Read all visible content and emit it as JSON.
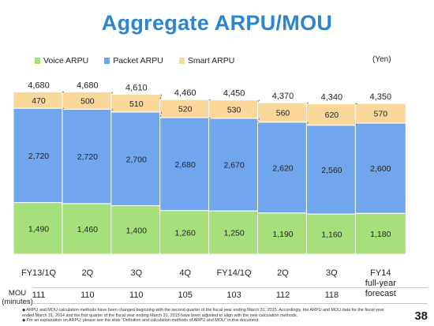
{
  "title": "Aggregate ARPU/MOU",
  "unit": "(Yen)",
  "chart_data": {
    "type": "bar",
    "stacked": true,
    "categories": [
      "FY13/1Q",
      "2Q",
      "3Q",
      "4Q",
      "FY14/1Q",
      "2Q",
      "3Q",
      "FY14 full-year forecast"
    ],
    "category_lines": [
      [
        "FY13/1Q"
      ],
      [
        "2Q"
      ],
      [
        "3Q"
      ],
      [
        "4Q"
      ],
      [
        "FY14/1Q"
      ],
      [
        "2Q"
      ],
      [
        "3Q"
      ],
      [
        "FY14",
        "full-year",
        "forecast"
      ]
    ],
    "series": [
      {
        "name": "Voice ARPU",
        "color": "#a6e07a",
        "values": [
          1490,
          1460,
          1400,
          1260,
          1250,
          1190,
          1160,
          1180
        ],
        "labels": [
          "1,490",
          "1,460",
          "1,400",
          "1,260",
          "1,250",
          "1,190",
          "1,160",
          "1,180"
        ]
      },
      {
        "name": "Packet ARPU",
        "color": "#6fa6ee",
        "values": [
          2720,
          2720,
          2700,
          2680,
          2670,
          2620,
          2560,
          2600
        ],
        "labels": [
          "2,720",
          "2,720",
          "2,700",
          "2,680",
          "2,670",
          "2,620",
          "2,560",
          "2,600"
        ]
      },
      {
        "name": "Smart ARPU",
        "color": "#fbd79a",
        "values": [
          470,
          500,
          510,
          520,
          530,
          560,
          620,
          570
        ],
        "labels": [
          "470",
          "500",
          "510",
          "520",
          "530",
          "560",
          "620",
          "570"
        ]
      }
    ],
    "totals": [
      4680,
      4680,
      4610,
      4460,
      4450,
      4370,
      4340,
      4350
    ],
    "total_labels": [
      "4,680",
      "4,680",
      "4,610",
      "4,460",
      "4,450",
      "4,370",
      "4,340",
      "4,350"
    ],
    "legend_position": "top-left",
    "grid": false
  },
  "mou": {
    "label_lines": [
      "MOU",
      "(minutes)"
    ],
    "values": [
      "111",
      "110",
      "110",
      "105",
      "103",
      "112",
      "118"
    ]
  },
  "notes": [
    "◆ ARPU and MOU calculation methods have been changed beginning with the second quarter of the fiscal year ending March 31, 2015.  Accordingly, the ARPU and MOU data for the fiscal year ended March 31, 2014 and the first quarter of the fiscal year ending March 31, 2015 have been adjusted to align with the new calculation methods.",
    "◆ For an explanation on ARPU, please see the slide \"Definition and calculation methods of ARPU and MOU\" in this document."
  ],
  "page_number": "38"
}
